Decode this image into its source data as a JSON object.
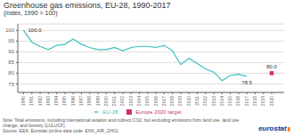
{
  "chart_data": {
    "type": "line",
    "title": "Greenhouse gas emissions, EU-28, 1990-2017",
    "subtitle": "(index, 1990 = 100)",
    "x": [
      1990,
      1991,
      1992,
      1993,
      1994,
      1995,
      1996,
      1997,
      1998,
      1999,
      2000,
      2001,
      2002,
      2003,
      2004,
      2005,
      2006,
      2007,
      2008,
      2009,
      2010,
      2011,
      2012,
      2013,
      2014,
      2015,
      2016,
      2017
    ],
    "xlim": [
      1989.3,
      2021.5
    ],
    "xticks": [
      1990,
      1991,
      1992,
      1993,
      1994,
      1995,
      1996,
      1997,
      1998,
      1999,
      2000,
      2001,
      2002,
      2003,
      2004,
      2005,
      2006,
      2007,
      2008,
      2009,
      2010,
      2011,
      2012,
      2013,
      2014,
      2015,
      2016,
      2017,
      2018,
      2019,
      2020
    ],
    "ylim": [
      71,
      103
    ],
    "yticks": [
      75,
      80,
      85,
      90,
      95,
      100
    ],
    "grid": true,
    "legend": "bottom",
    "series": [
      {
        "name": "EU-28",
        "type": "line",
        "color": "#3bbfbf",
        "values": [
          100.0,
          94.5,
          92.5,
          91.0,
          93.0,
          93.5,
          96.0,
          93.5,
          92.0,
          91.0,
          91.0,
          92.0,
          90.5,
          92.0,
          92.5,
          92.5,
          92.0,
          93.0,
          90.5,
          84.0,
          87.0,
          84.5,
          82.0,
          80.5,
          76.5,
          79.0,
          79.5,
          78.5
        ]
      },
      {
        "name": "Europe 2020 target",
        "type": "scatter",
        "marker": "square",
        "color": "#cc3366",
        "x": [
          2020
        ],
        "values": [
          80.0
        ]
      }
    ],
    "annotations": [
      {
        "text": "100.0",
        "x": 1990,
        "y": 100.0
      },
      {
        "text": "78.5",
        "x": 2017,
        "y": 78.5
      },
      {
        "text": "80.0",
        "x": 2020,
        "y": 80.0
      }
    ],
    "notes": [
      "Note: Total emissions, including international aviation and indirect CO2, but excluding emissions from land use, land use change, and forestry (LULUCF).",
      "Source: EEA; Eurostat (online data code: ENV_AIR_GHG)"
    ],
    "logo": "eurostat",
    "logo_color": "#003399",
    "logo_mark": "▮",
    "logo_mark_color": "#ff6600"
  }
}
